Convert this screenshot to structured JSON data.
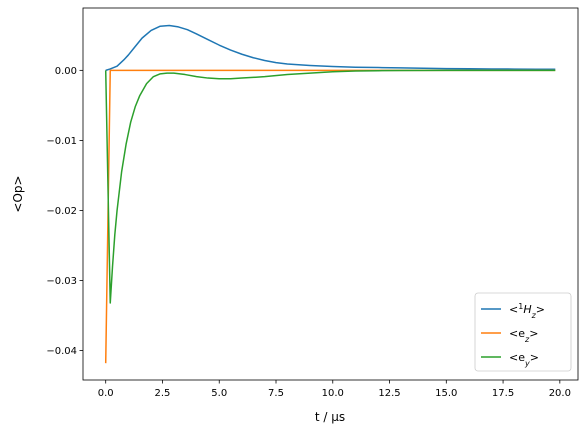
{
  "chart_data": {
    "type": "line",
    "xlabel": "t / μs",
    "ylabel": "<Op>",
    "xlim": [
      -1.0,
      20.8
    ],
    "ylim": [
      -0.0442,
      0.0089
    ],
    "xticks": [
      {
        "value": 0.0,
        "label": "0.0"
      },
      {
        "value": 2.5,
        "label": "2.5"
      },
      {
        "value": 5.0,
        "label": "5.0"
      },
      {
        "value": 7.5,
        "label": "7.5"
      },
      {
        "value": 10.0,
        "label": "10.0"
      },
      {
        "value": 12.5,
        "label": "12.5"
      },
      {
        "value": 15.0,
        "label": "15.0"
      },
      {
        "value": 17.5,
        "label": "17.5"
      },
      {
        "value": 20.0,
        "label": "20.0"
      }
    ],
    "yticks": [
      {
        "value": 0.0,
        "label": "0.00"
      },
      {
        "value": -0.01,
        "label": "−0.01"
      },
      {
        "value": -0.02,
        "label": "−0.02"
      },
      {
        "value": -0.03,
        "label": "−0.03"
      },
      {
        "value": -0.04,
        "label": "−0.04"
      }
    ],
    "grid": false,
    "legend_position": "lower right",
    "series": [
      {
        "name_parts": [
          "<",
          "1",
          "H",
          "z",
          ">"
        ],
        "name": "<1Hz>",
        "color": "#1f77b4",
        "x": [
          0.0,
          0.2,
          0.5,
          0.8,
          1.0,
          1.3,
          1.6,
          2.0,
          2.4,
          2.8,
          3.2,
          3.6,
          4.0,
          4.5,
          5.0,
          5.5,
          6.0,
          6.5,
          7.0,
          7.5,
          8.0,
          9.0,
          10.0,
          11.0,
          12.0,
          13.0,
          14.0,
          15.0,
          16.0,
          17.0,
          18.0,
          19.0,
          19.8
        ],
        "y": [
          0.0,
          0.0002,
          0.0006,
          0.0015,
          0.0022,
          0.0034,
          0.0046,
          0.0057,
          0.0063,
          0.0064,
          0.0062,
          0.0058,
          0.0052,
          0.0044,
          0.0036,
          0.0029,
          0.0023,
          0.0018,
          0.0014,
          0.0011,
          0.0009,
          0.0007,
          0.00055,
          0.00045,
          0.0004,
          0.00035,
          0.0003,
          0.00025,
          0.00022,
          0.0002,
          0.00018,
          0.00016,
          0.00015
        ]
      },
      {
        "name_parts": [
          "<e",
          "z",
          ">"
        ],
        "name": "<ez>",
        "color": "#ff7f0e",
        "x": [
          0.0,
          0.2,
          0.22,
          1.0,
          5.0,
          10.0,
          15.0,
          19.8
        ],
        "y": [
          -0.0418,
          0.0,
          0.0,
          0.0,
          0.0,
          0.0,
          0.0,
          0.0
        ]
      },
      {
        "name_parts": [
          "<e",
          "y",
          ">"
        ],
        "name": "<ey>",
        "color": "#2ca02c",
        "x": [
          0.0,
          0.2,
          0.3,
          0.4,
          0.5,
          0.7,
          0.9,
          1.1,
          1.3,
          1.5,
          1.8,
          2.1,
          2.4,
          2.7,
          3.0,
          3.5,
          4.0,
          4.5,
          5.0,
          5.5,
          6.0,
          7.0,
          8.0,
          9.0,
          10.0,
          11.0,
          12.0,
          13.0,
          15.0,
          17.5,
          19.8
        ],
        "y": [
          0.0,
          -0.0332,
          -0.028,
          -0.0235,
          -0.02,
          -0.0145,
          -0.0105,
          -0.0074,
          -0.0052,
          -0.0036,
          -0.0019,
          -0.0009,
          -0.0005,
          -0.0004,
          -0.0004,
          -0.0006,
          -0.0009,
          -0.0011,
          -0.0012,
          -0.0012,
          -0.0011,
          -0.0009,
          -0.0006,
          -0.0004,
          -0.0002,
          -0.0001,
          -5e-05,
          -3e-05,
          0.0,
          0.0,
          0.0
        ]
      }
    ]
  }
}
